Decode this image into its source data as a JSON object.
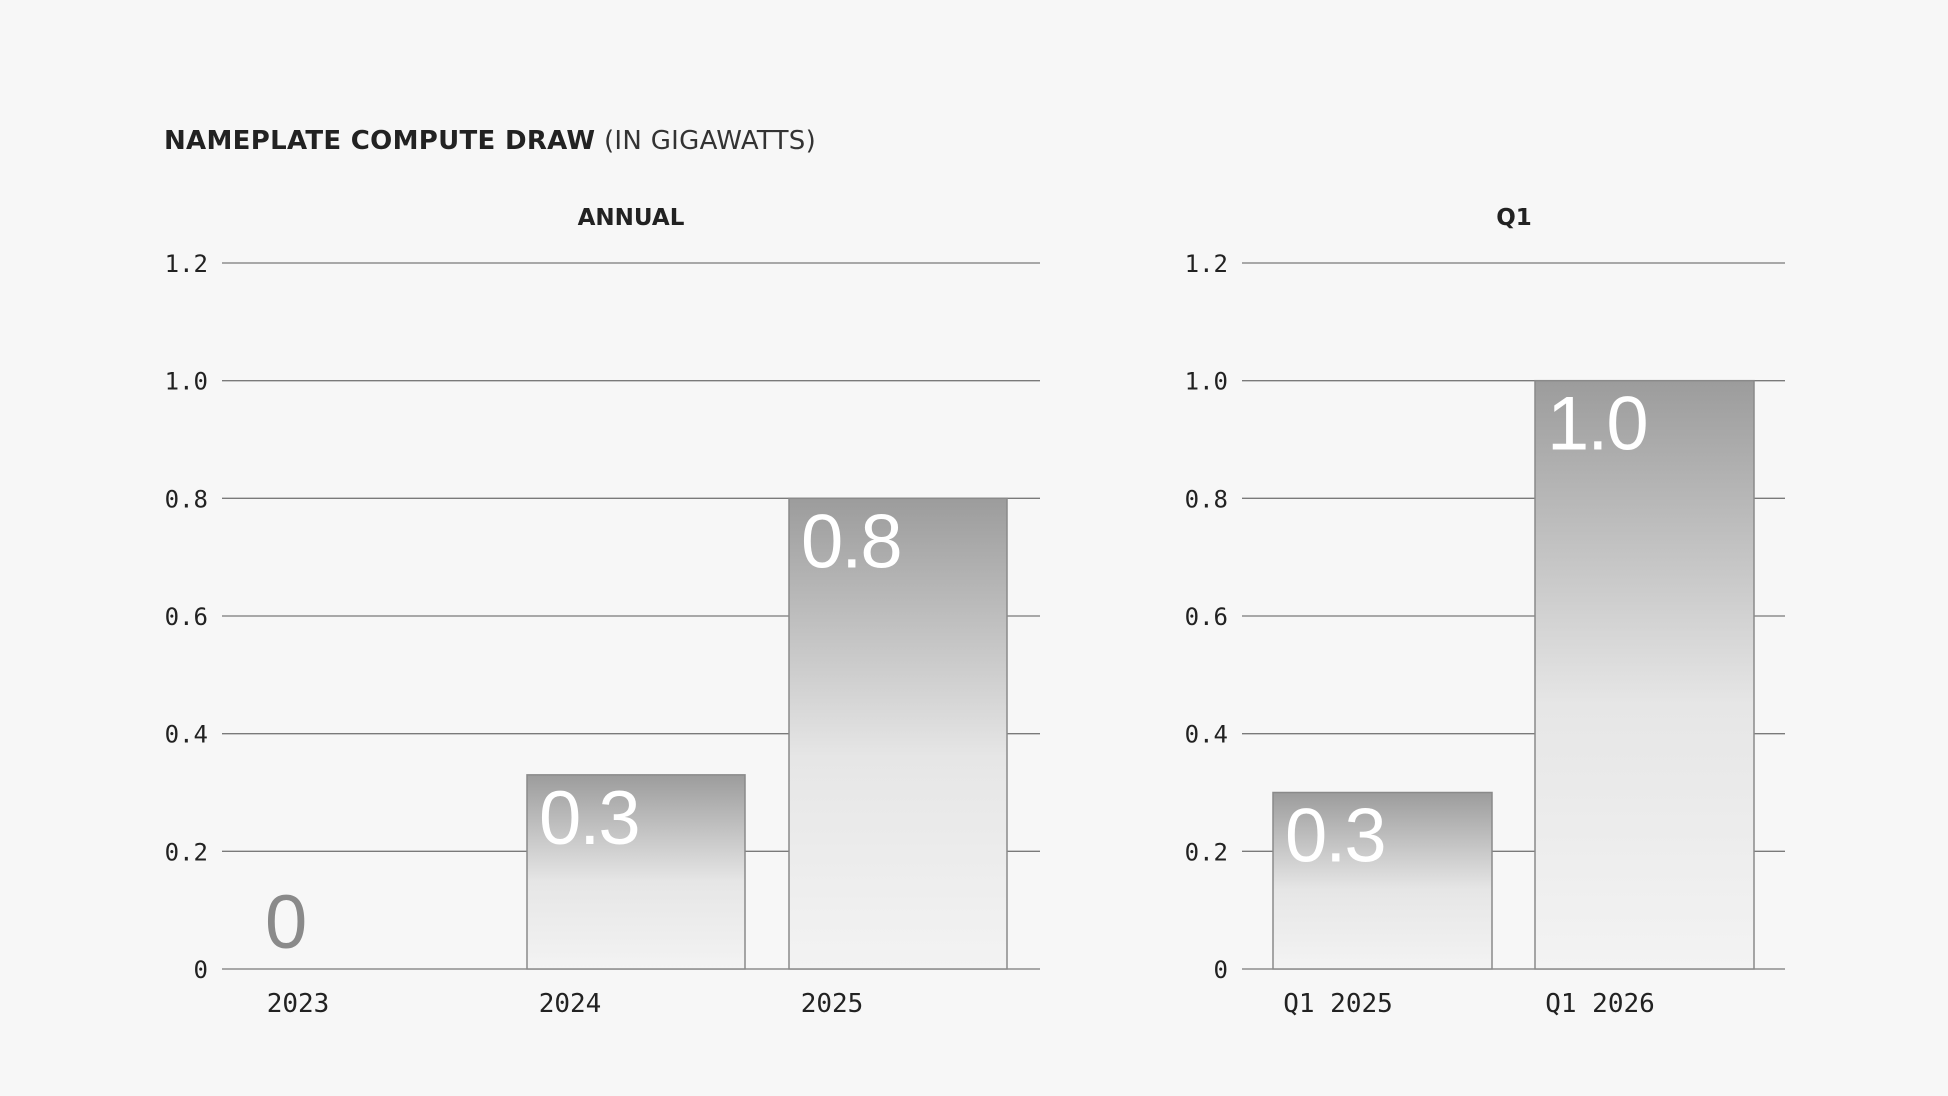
{
  "title": {
    "bold": "NAMEPLATE COMPUTE DRAW",
    "light": "(IN GIGAWATTS)"
  },
  "chart_data": [
    {
      "type": "bar",
      "title": "ANNUAL",
      "categories": [
        "2023",
        "2024",
        "2025"
      ],
      "values": [
        0,
        0.33,
        0.8
      ],
      "value_labels": [
        "0",
        "0.3",
        "0.8"
      ],
      "ylim": [
        0,
        1.2
      ],
      "yticks": [
        "0",
        "0.2",
        "0.4",
        "0.6",
        "0.8",
        "1.0",
        "1.2"
      ],
      "grid": true,
      "xlabel": "",
      "ylabel": ""
    },
    {
      "type": "bar",
      "title": "Q1",
      "categories": [
        "Q1 2025",
        "Q1 2026"
      ],
      "values": [
        0.3,
        1.0
      ],
      "value_labels": [
        "0.3",
        "1.0"
      ],
      "ylim": [
        0,
        1.2
      ],
      "yticks": [
        "0",
        "0.2",
        "0.4",
        "0.6",
        "0.8",
        "1.0",
        "1.2"
      ],
      "grid": true,
      "xlabel": "",
      "ylabel": ""
    }
  ],
  "colors": {
    "background": "#f7f7f7",
    "bar_top": "#9c9c9c",
    "bar_bottom": "#f3f3f3",
    "gridline": "#7a7a7a"
  }
}
